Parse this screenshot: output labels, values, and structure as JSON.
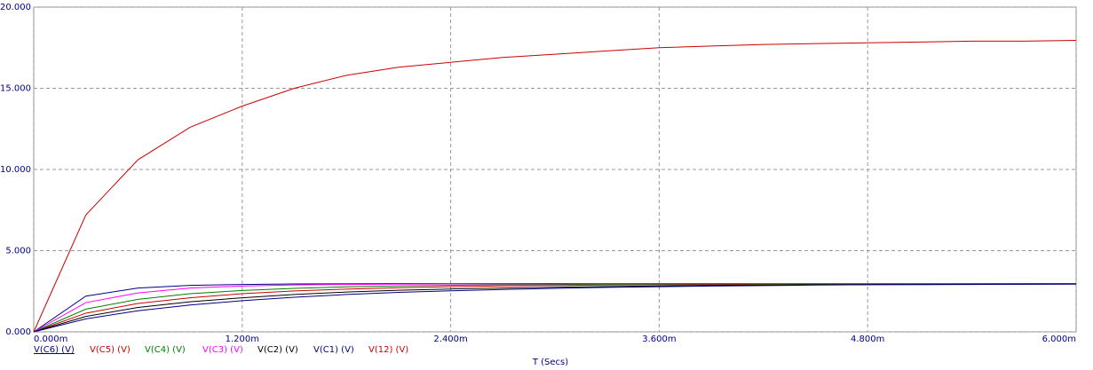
{
  "chart_data": {
    "type": "line",
    "x_label": "T (Secs)",
    "x": [
      0,
      0.0003,
      0.0006,
      0.0009,
      0.0012,
      0.0015,
      0.0018,
      0.0021,
      0.0024,
      0.0027,
      0.003,
      0.0033,
      0.0036,
      0.0039,
      0.0042,
      0.0045,
      0.0048,
      0.0051,
      0.0054,
      0.0057,
      0.006
    ],
    "series": [
      {
        "name": "V(C6) (V)",
        "color": "#000080",
        "values": [
          0,
          2.2,
          2.7,
          2.86,
          2.92,
          2.95,
          2.96,
          2.97,
          2.97,
          2.97,
          2.98,
          2.98,
          2.98,
          2.98,
          2.98,
          2.98,
          2.98,
          2.98,
          2.98,
          2.98,
          2.98
        ]
      },
      {
        "name": "V(C5) (V)",
        "color": "#cc0000",
        "values": [
          0,
          1.15,
          1.75,
          2.1,
          2.35,
          2.52,
          2.63,
          2.72,
          2.78,
          2.83,
          2.86,
          2.88,
          2.9,
          2.92,
          2.93,
          2.94,
          2.95,
          2.95,
          2.96,
          2.96,
          2.97
        ]
      },
      {
        "name": "V(C4) (V)",
        "color": "#008000",
        "values": [
          0,
          1.4,
          2.0,
          2.35,
          2.55,
          2.68,
          2.77,
          2.83,
          2.87,
          2.9,
          2.92,
          2.93,
          2.94,
          2.95,
          2.96,
          2.96,
          2.97,
          2.97,
          2.97,
          2.97,
          2.98
        ]
      },
      {
        "name": "V(C3) (V)",
        "color": "#ff00ff",
        "values": [
          0,
          1.8,
          2.4,
          2.7,
          2.82,
          2.89,
          2.92,
          2.94,
          2.95,
          2.96,
          2.96,
          2.97,
          2.97,
          2.97,
          2.98,
          2.98,
          2.98,
          2.98,
          2.98,
          2.98,
          2.98
        ]
      },
      {
        "name": "V(C2) (V)",
        "color": "#000000",
        "values": [
          0,
          0.95,
          1.5,
          1.85,
          2.1,
          2.3,
          2.45,
          2.56,
          2.64,
          2.7,
          2.75,
          2.79,
          2.83,
          2.86,
          2.88,
          2.9,
          2.91,
          2.92,
          2.93,
          2.94,
          2.95
        ]
      },
      {
        "name": "V(C1) (V)",
        "color": "#000080",
        "values": [
          0,
          0.8,
          1.3,
          1.65,
          1.92,
          2.13,
          2.3,
          2.43,
          2.53,
          2.61,
          2.68,
          2.74,
          2.78,
          2.82,
          2.85,
          2.88,
          2.9,
          2.91,
          2.92,
          2.93,
          2.94
        ]
      },
      {
        "name": "V(12) (V)",
        "color": "#cc0000",
        "values": [
          0,
          7.2,
          10.6,
          12.6,
          13.9,
          15.0,
          15.8,
          16.3,
          16.6,
          16.9,
          17.1,
          17.3,
          17.5,
          17.6,
          17.7,
          17.75,
          17.8,
          17.85,
          17.9,
          17.9,
          17.95
        ]
      }
    ],
    "xlim": [
      0,
      0.006
    ],
    "xticks": [
      {
        "value": 0,
        "label": "0.000m"
      },
      {
        "value": 0.0012,
        "label": "1.200m"
      },
      {
        "value": 0.0024,
        "label": "2.400m"
      },
      {
        "value": 0.0036,
        "label": "3.600m"
      },
      {
        "value": 0.0048,
        "label": "4.800m"
      },
      {
        "value": 0.006,
        "label": "6.000m"
      }
    ],
    "ylim": [
      0,
      20
    ],
    "yticks": [
      {
        "value": 0,
        "label": "0.000"
      },
      {
        "value": 5,
        "label": "5.000"
      },
      {
        "value": 10,
        "label": "10.000"
      },
      {
        "value": 15,
        "label": "15.000"
      },
      {
        "value": 20,
        "label": "20.000"
      }
    ],
    "grid": true
  }
}
